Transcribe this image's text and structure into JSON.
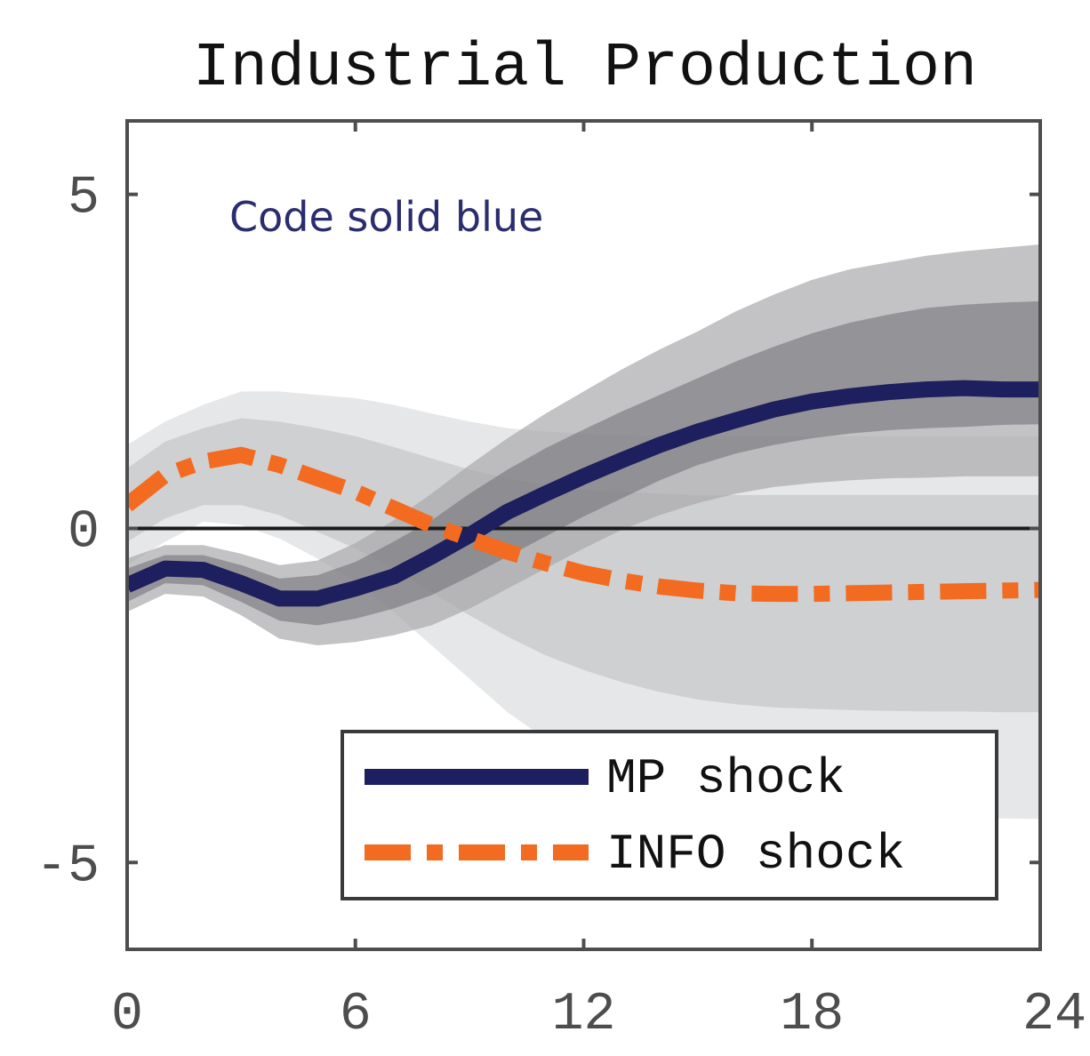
{
  "chart_data": {
    "type": "line",
    "title": "Industrial Production",
    "annotation": "Code solid blue",
    "xlabel": "",
    "ylabel": "",
    "xlim": [
      0,
      24
    ],
    "ylim": [
      -6.3,
      6.1
    ],
    "x_ticks": [
      0,
      6,
      12,
      18,
      24
    ],
    "x_tick_labels": [
      "0",
      "6",
      "12",
      "18",
      "24"
    ],
    "y_ticks": [
      5,
      0,
      -5
    ],
    "y_tick_labels": [
      "5",
      "0",
      "-5"
    ],
    "zero_line": 0,
    "grid": false,
    "legend": {
      "position": "bottom-right",
      "entries": [
        "MP shock",
        "INFO shock"
      ]
    },
    "x": [
      0,
      1,
      2,
      3,
      4,
      5,
      6,
      7,
      8,
      9,
      10,
      11,
      12,
      13,
      14,
      15,
      16,
      17,
      18,
      19,
      20,
      21,
      22,
      23,
      24
    ],
    "series": [
      {
        "name": "MP shock",
        "style": "solid",
        "color": "#1e1f5e",
        "values": [
          -0.85,
          -0.6,
          -0.62,
          -0.82,
          -1.05,
          -1.05,
          -0.9,
          -0.72,
          -0.42,
          -0.1,
          0.25,
          0.52,
          0.78,
          1.02,
          1.25,
          1.45,
          1.62,
          1.78,
          1.9,
          1.98,
          2.04,
          2.08,
          2.1,
          2.08,
          2.08
        ]
      },
      {
        "name": "INFO shock",
        "style": "dashdot",
        "color": "#f26b21",
        "values": [
          0.35,
          0.8,
          1.0,
          1.1,
          0.95,
          0.75,
          0.55,
          0.3,
          0.05,
          -0.15,
          -0.35,
          -0.52,
          -0.67,
          -0.78,
          -0.87,
          -0.93,
          -0.97,
          -0.98,
          -0.98,
          -0.97,
          -0.96,
          -0.95,
          -0.94,
          -0.93,
          -0.92
        ]
      }
    ],
    "bands": [
      {
        "series": "MP shock",
        "level": "outer",
        "color": "#a9aaad",
        "opacity": 0.7,
        "upper": [
          -0.45,
          -0.25,
          -0.25,
          -0.38,
          -0.55,
          -0.48,
          -0.22,
          0.12,
          0.52,
          0.95,
          1.35,
          1.72,
          2.05,
          2.38,
          2.68,
          2.95,
          3.25,
          3.5,
          3.72,
          3.88,
          3.98,
          4.08,
          4.15,
          4.2,
          4.25
        ],
        "lower": [
          -1.25,
          -0.98,
          -1.02,
          -1.3,
          -1.65,
          -1.75,
          -1.7,
          -1.6,
          -1.45,
          -1.2,
          -0.9,
          -0.6,
          -0.3,
          -0.02,
          0.2,
          0.38,
          0.52,
          0.62,
          0.68,
          0.72,
          0.75,
          0.76,
          0.78,
          0.78,
          0.78
        ]
      },
      {
        "series": "MP shock",
        "level": "inner",
        "color": "#6d6e72",
        "opacity": 0.55,
        "upper": [
          -0.6,
          -0.4,
          -0.4,
          -0.55,
          -0.75,
          -0.7,
          -0.5,
          -0.2,
          0.12,
          0.52,
          0.88,
          1.2,
          1.48,
          1.75,
          2.0,
          2.25,
          2.5,
          2.72,
          2.92,
          3.08,
          3.2,
          3.3,
          3.35,
          3.38,
          3.4
        ],
        "lower": [
          -1.1,
          -0.82,
          -0.85,
          -1.1,
          -1.38,
          -1.45,
          -1.35,
          -1.2,
          -1.0,
          -0.72,
          -0.42,
          -0.12,
          0.18,
          0.45,
          0.72,
          0.95,
          1.12,
          1.25,
          1.35,
          1.42,
          1.47,
          1.5,
          1.52,
          1.55,
          1.56
        ]
      },
      {
        "series": "INFO shock",
        "level": "outer",
        "color": "#c8c9cb",
        "opacity": 0.45,
        "upper": [
          1.25,
          1.6,
          1.85,
          2.05,
          2.05,
          2.0,
          1.95,
          1.85,
          1.72,
          1.6,
          1.5,
          1.45,
          1.42,
          1.4,
          1.38,
          1.38,
          1.38,
          1.38,
          1.38,
          1.38,
          1.38,
          1.38,
          1.38,
          1.38,
          1.38
        ],
        "lower": [
          -0.55,
          -0.2,
          0.1,
          0.05,
          -0.15,
          -0.45,
          -0.8,
          -1.25,
          -1.75,
          -2.25,
          -2.75,
          -3.15,
          -3.45,
          -3.7,
          -3.9,
          -4.05,
          -4.15,
          -4.2,
          -4.25,
          -4.3,
          -4.3,
          -4.32,
          -4.33,
          -4.34,
          -4.35
        ]
      },
      {
        "series": "INFO shock",
        "level": "inner",
        "color": "#b3b4b7",
        "opacity": 0.45,
        "upper": [
          0.9,
          1.3,
          1.5,
          1.65,
          1.6,
          1.5,
          1.38,
          1.22,
          1.05,
          0.88,
          0.75,
          0.65,
          0.58,
          0.55,
          0.52,
          0.5,
          0.5,
          0.5,
          0.5,
          0.5,
          0.5,
          0.5,
          0.5,
          0.5,
          0.5
        ],
        "lower": [
          -0.2,
          0.15,
          0.35,
          0.35,
          0.2,
          -0.05,
          -0.3,
          -0.6,
          -0.95,
          -1.3,
          -1.62,
          -1.9,
          -2.12,
          -2.3,
          -2.45,
          -2.56,
          -2.63,
          -2.68,
          -2.7,
          -2.72,
          -2.73,
          -2.74,
          -2.74,
          -2.75,
          -2.75
        ]
      }
    ]
  }
}
